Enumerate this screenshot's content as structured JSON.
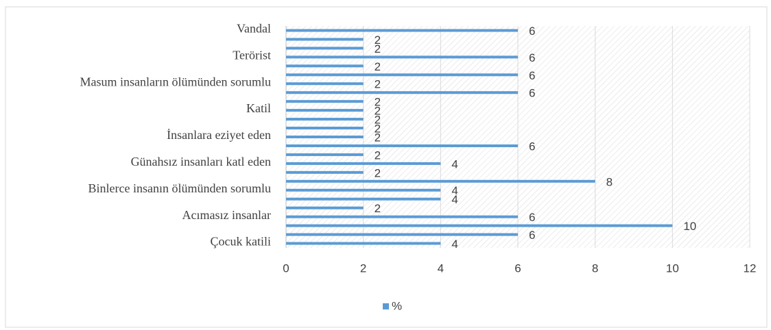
{
  "chart_data": {
    "type": "bar",
    "orientation": "horizontal",
    "categories": [
      "Vandal",
      null,
      null,
      "Terörist",
      null,
      null,
      "Masum insanların ölümünden sorumlu",
      null,
      null,
      "Katil",
      null,
      null,
      "İnsanlara eziyet eden",
      null,
      null,
      "Günahsız insanları katl eden",
      null,
      null,
      "Binlerce insanın ölümünden sorumlu",
      null,
      null,
      "Acımasız insanlar",
      null,
      null,
      "Çocuk katili"
    ],
    "series": [
      {
        "name": "%",
        "color": "#5b9bd5",
        "values": [
          6,
          2,
          2,
          6,
          2,
          6,
          2,
          6,
          2,
          2,
          2,
          2,
          2,
          6,
          2,
          4,
          2,
          8,
          4,
          4,
          2,
          6,
          10,
          6,
          4
        ]
      }
    ],
    "xlim": [
      0,
      12
    ],
    "xticks": [
      0,
      2,
      4,
      6,
      8,
      10,
      12
    ],
    "grid": true,
    "legend": "bottom"
  }
}
